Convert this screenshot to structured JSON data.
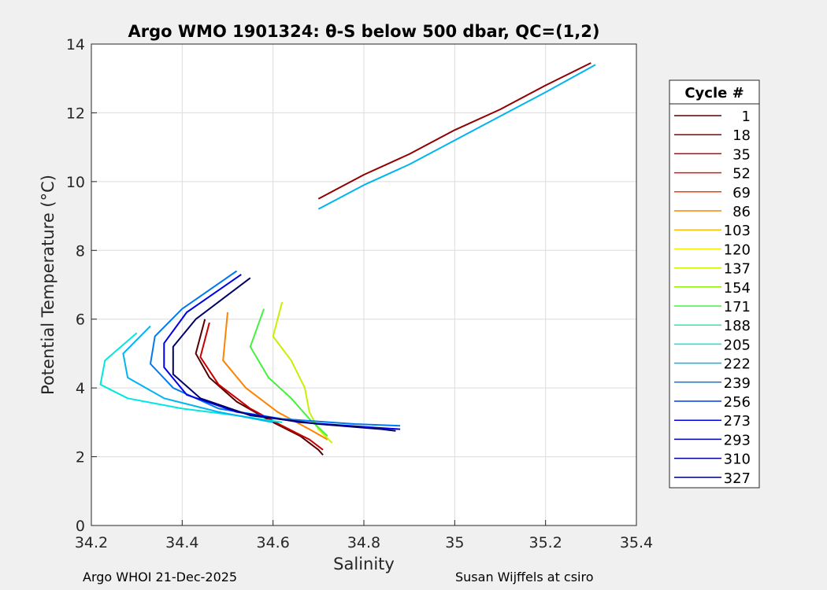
{
  "chart_data": {
    "type": "line",
    "title": "Argo WMO 1901324: θ-S below 500 dbar,  QC=(1,2)",
    "xlabel": "Salinity",
    "ylabel": "Potential Temperature (°C)",
    "xlim": [
      34.2,
      35.4
    ],
    "ylim": [
      0,
      14
    ],
    "xticks": [
      34.2,
      34.4,
      34.6,
      34.8,
      35,
      35.2,
      35.4
    ],
    "xtick_labels": [
      "34.2",
      "34.4",
      "34.6",
      "34.8",
      "35",
      "35.2",
      "35.4"
    ],
    "yticks": [
      0,
      2,
      4,
      6,
      8,
      10,
      12,
      14
    ],
    "ytick_labels": [
      "0",
      "2",
      "4",
      "6",
      "8",
      "10",
      "12",
      "14"
    ],
    "grid": true,
    "legend": {
      "title": "Cycle #",
      "placement": "outside-right",
      "entries": [
        {
          "label": "1",
          "color": "#5a0000"
        },
        {
          "label": "18",
          "color": "#900000"
        },
        {
          "label": "35",
          "color": "#c80000"
        },
        {
          "label": "52",
          "color": "#ec1010"
        },
        {
          "label": "69",
          "color": "#ff3a00"
        },
        {
          "label": "86",
          "color": "#ff8200"
        },
        {
          "label": "103",
          "color": "#ffbe00"
        },
        {
          "label": "120",
          "color": "#f5f000"
        },
        {
          "label": "137",
          "color": "#c8f000"
        },
        {
          "label": "154",
          "color": "#8cf000"
        },
        {
          "label": "171",
          "color": "#46f040"
        },
        {
          "label": "188",
          "color": "#20f0a0"
        },
        {
          "label": "205",
          "color": "#00e8e0"
        },
        {
          "label": "222",
          "color": "#00b4f0"
        },
        {
          "label": "239",
          "color": "#0078f0"
        },
        {
          "label": "256",
          "color": "#003cf0"
        },
        {
          "label": "273",
          "color": "#0000e6"
        },
        {
          "label": "293",
          "color": "#0000b4"
        },
        {
          "label": "310",
          "color": "#000090"
        },
        {
          "label": "327",
          "color": "#00006a"
        }
      ]
    },
    "series": [
      {
        "color": "#5a0000",
        "x": [
          34.45,
          34.43,
          34.46,
          34.52,
          34.6,
          34.66,
          34.7,
          34.71
        ],
        "y": [
          6.0,
          5.0,
          4.3,
          3.6,
          3.0,
          2.6,
          2.2,
          2.05
        ]
      },
      {
        "color": "#c80000",
        "x": [
          34.46,
          34.44,
          34.48,
          34.55,
          34.62,
          34.68,
          34.71
        ],
        "y": [
          5.9,
          4.9,
          4.1,
          3.4,
          2.9,
          2.5,
          2.2
        ]
      },
      {
        "color": "#ff8200",
        "x": [
          34.5,
          34.49,
          34.54,
          34.61,
          34.68,
          34.72
        ],
        "y": [
          6.2,
          4.8,
          4.0,
          3.3,
          2.8,
          2.5
        ]
      },
      {
        "color": "#c8f000",
        "x": [
          34.62,
          34.6,
          34.64,
          34.67,
          34.68,
          34.7,
          34.73
        ],
        "y": [
          6.5,
          5.5,
          4.8,
          4.0,
          3.3,
          2.8,
          2.4
        ]
      },
      {
        "color": "#46f040",
        "x": [
          34.58,
          34.55,
          34.59,
          34.64,
          34.68,
          34.72
        ],
        "y": [
          6.3,
          5.2,
          4.3,
          3.7,
          3.1,
          2.6
        ]
      },
      {
        "color": "#00e8e0",
        "x": [
          34.3,
          34.23,
          34.22,
          34.28,
          34.4,
          34.52,
          34.62
        ],
        "y": [
          5.6,
          4.8,
          4.1,
          3.7,
          3.4,
          3.2,
          3.0
        ]
      },
      {
        "color": "#00b4f0",
        "x": [
          34.33,
          34.27,
          34.28,
          34.36,
          34.48,
          34.6
        ],
        "y": [
          5.8,
          5.0,
          4.3,
          3.7,
          3.3,
          3.0
        ]
      },
      {
        "color": "#0078f0",
        "x": [
          34.52,
          34.4,
          34.34,
          34.33,
          34.38,
          34.48,
          34.62,
          34.78,
          34.88
        ],
        "y": [
          7.4,
          6.3,
          5.5,
          4.7,
          4.0,
          3.4,
          3.1,
          2.95,
          2.9
        ]
      },
      {
        "color": "#0000e6",
        "x": [
          34.53,
          34.41,
          34.36,
          34.36,
          34.41,
          34.52,
          34.66,
          34.82,
          34.88
        ],
        "y": [
          7.3,
          6.2,
          5.3,
          4.6,
          3.8,
          3.3,
          3.0,
          2.85,
          2.8
        ]
      },
      {
        "color": "#00006a",
        "x": [
          34.55,
          34.43,
          34.38,
          34.38,
          34.44,
          34.55,
          34.7,
          34.84,
          34.87
        ],
        "y": [
          7.2,
          6.0,
          5.2,
          4.4,
          3.7,
          3.2,
          2.95,
          2.8,
          2.75
        ]
      },
      {
        "color": "#900000",
        "x": [
          34.7,
          34.8,
          34.9,
          35.0,
          35.1,
          35.2,
          35.3
        ],
        "y": [
          9.5,
          10.2,
          10.8,
          11.5,
          12.1,
          12.8,
          13.45
        ]
      },
      {
        "color": "#00b4f0",
        "x": [
          34.7,
          34.8,
          34.9,
          35.0,
          35.1,
          35.2,
          35.31
        ],
        "y": [
          9.2,
          9.9,
          10.5,
          11.2,
          11.9,
          12.6,
          13.4
        ]
      }
    ]
  },
  "footer": {
    "left": "Argo WHOI 21-Dec-2025",
    "right": "Susan Wijffels at csiro"
  }
}
